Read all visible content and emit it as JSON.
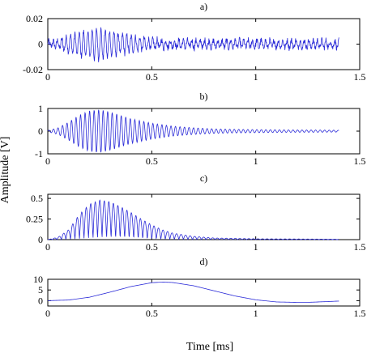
{
  "figure": {
    "ylabel": "Amplitude [V]",
    "xlabel": "Time [ms]"
  },
  "chart_data": [
    {
      "type": "line",
      "panel_label": "a)",
      "title": "",
      "xlabel": "",
      "ylabel": "",
      "xlim": [
        0,
        1.5
      ],
      "ylim": [
        -0.02,
        0.02
      ],
      "xticks": [
        0,
        0.5,
        1,
        1.5
      ],
      "xtick_labels": [
        "0",
        "0.5",
        "1",
        "1.5"
      ],
      "yticks": [
        -0.02,
        0,
        0.02
      ],
      "ytick_labels": [
        "-0.02",
        "0",
        "0.02"
      ],
      "grid": false,
      "color": "#2b2bd8",
      "series": [
        {
          "x": [
            0,
            0.05,
            0.1,
            0.15,
            0.2,
            0.25,
            0.3,
            0.35,
            0.4,
            0.45,
            0.5,
            0.6,
            0.7,
            0.8,
            0.9,
            1.0,
            1.1,
            1.2,
            1.3,
            1.4
          ],
          "y_envelope": [
            0.002,
            0.003,
            0.006,
            0.009,
            0.011,
            0.012,
            0.01,
            0.008,
            0.006,
            0.005,
            0.004,
            0.003,
            0.003,
            0.003,
            0.003,
            0.003,
            0.003,
            0.003,
            0.003,
            0.003
          ]
        }
      ]
    },
    {
      "type": "line",
      "panel_label": "b)",
      "title": "",
      "xlabel": "",
      "ylabel": "",
      "xlim": [
        0,
        1.5
      ],
      "ylim": [
        -1,
        1
      ],
      "xticks": [
        0,
        0.5,
        1,
        1.5
      ],
      "xtick_labels": [
        "0",
        "0.5",
        "1",
        "1.5"
      ],
      "yticks": [
        -1,
        0,
        1
      ],
      "ytick_labels": [
        "-1",
        "0",
        "1"
      ],
      "grid": false,
      "color": "#2b2bd8",
      "series": [
        {
          "x": [
            0,
            0.05,
            0.1,
            0.15,
            0.2,
            0.25,
            0.3,
            0.35,
            0.4,
            0.5,
            0.6,
            0.7,
            0.8,
            0.9,
            1.0,
            1.1,
            1.2,
            1.3,
            1.4
          ],
          "y_envelope": [
            0.03,
            0.15,
            0.4,
            0.7,
            0.9,
            0.95,
            0.85,
            0.7,
            0.55,
            0.35,
            0.22,
            0.15,
            0.1,
            0.08,
            0.07,
            0.06,
            0.05,
            0.05,
            0.04
          ]
        }
      ]
    },
    {
      "type": "line",
      "panel_label": "c)",
      "title": "",
      "xlabel": "",
      "ylabel": "",
      "xlim": [
        0,
        1.5
      ],
      "ylim": [
        0,
        0.55
      ],
      "xticks": [
        0,
        0.5,
        1,
        1.5
      ],
      "xtick_labels": [
        "0",
        "0.5",
        "1",
        "1.5"
      ],
      "yticks": [
        0,
        0.25,
        0.5
      ],
      "ytick_labels": [
        "0",
        "0.25",
        "0.5"
      ],
      "grid": false,
      "color": "#2b2bd8",
      "series": [
        {
          "x": [
            0,
            0.05,
            0.1,
            0.15,
            0.2,
            0.25,
            0.3,
            0.35,
            0.4,
            0.45,
            0.5,
            0.55,
            0.6,
            0.7,
            0.8,
            0.9,
            1.0,
            1.2,
            1.4
          ],
          "y_envelope": [
            0.0,
            0.03,
            0.12,
            0.3,
            0.43,
            0.48,
            0.46,
            0.4,
            0.33,
            0.25,
            0.18,
            0.12,
            0.08,
            0.04,
            0.02,
            0.015,
            0.01,
            0.008,
            0.005
          ]
        }
      ]
    },
    {
      "type": "line",
      "panel_label": "d)",
      "title": "",
      "xlabel": "",
      "ylabel": "",
      "xlim": [
        0,
        1.5
      ],
      "ylim": [
        -2.5,
        10
      ],
      "xticks": [
        0,
        0.5,
        1,
        1.5
      ],
      "xtick_labels": [
        "0",
        "0.5",
        "1",
        "1.5"
      ],
      "yticks": [
        0,
        5,
        10
      ],
      "ytick_labels": [
        "0",
        "5",
        "10"
      ],
      "grid": false,
      "color": "#2b2bd8",
      "series": [
        {
          "x": [
            0,
            0.1,
            0.2,
            0.3,
            0.4,
            0.5,
            0.55,
            0.6,
            0.7,
            0.8,
            0.9,
            1.0,
            1.1,
            1.2,
            1.25,
            1.3,
            1.4
          ],
          "y": [
            0.0,
            0.3,
            1.6,
            4.0,
            6.6,
            8.4,
            8.7,
            8.5,
            7.0,
            4.6,
            2.2,
            0.4,
            -0.6,
            -0.8,
            -0.8,
            -0.6,
            -0.2
          ]
        }
      ]
    }
  ]
}
